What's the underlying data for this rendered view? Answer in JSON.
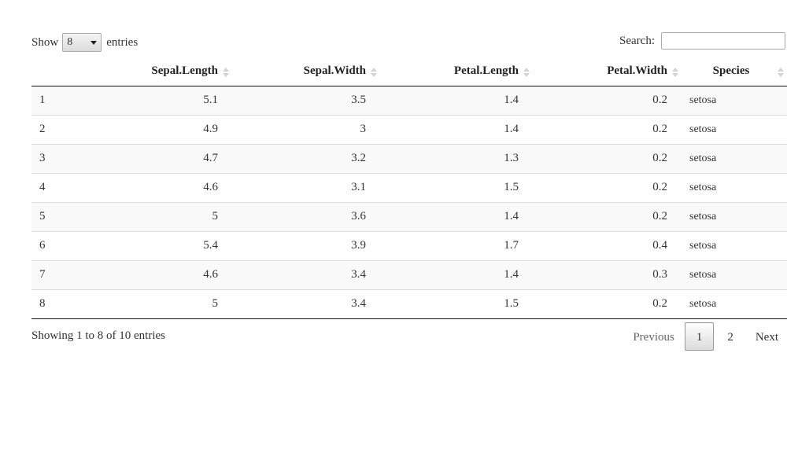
{
  "length_menu": {
    "show_label": "Show",
    "selected": "8",
    "entries_label": "entries"
  },
  "search": {
    "label": "Search:",
    "value": ""
  },
  "table": {
    "columns": [
      "",
      "Sepal.Length",
      "Sepal.Width",
      "Petal.Length",
      "Petal.Width",
      "Species"
    ],
    "rows": [
      [
        "1",
        "5.1",
        "3.5",
        "1.4",
        "0.2",
        "setosa"
      ],
      [
        "2",
        "4.9",
        "3",
        "1.4",
        "0.2",
        "setosa"
      ],
      [
        "3",
        "4.7",
        "3.2",
        "1.3",
        "0.2",
        "setosa"
      ],
      [
        "4",
        "4.6",
        "3.1",
        "1.5",
        "0.2",
        "setosa"
      ],
      [
        "5",
        "5",
        "3.6",
        "1.4",
        "0.2",
        "setosa"
      ],
      [
        "6",
        "5.4",
        "3.9",
        "1.7",
        "0.4",
        "setosa"
      ],
      [
        "7",
        "4.6",
        "3.4",
        "1.4",
        "0.3",
        "setosa"
      ],
      [
        "8",
        "5",
        "3.4",
        "1.5",
        "0.2",
        "setosa"
      ]
    ]
  },
  "info_text": "Showing 1 to 8 of 10 entries",
  "pagination": {
    "previous": "Previous",
    "pages": [
      "1",
      "2"
    ],
    "current_page": "1",
    "next": "Next"
  }
}
